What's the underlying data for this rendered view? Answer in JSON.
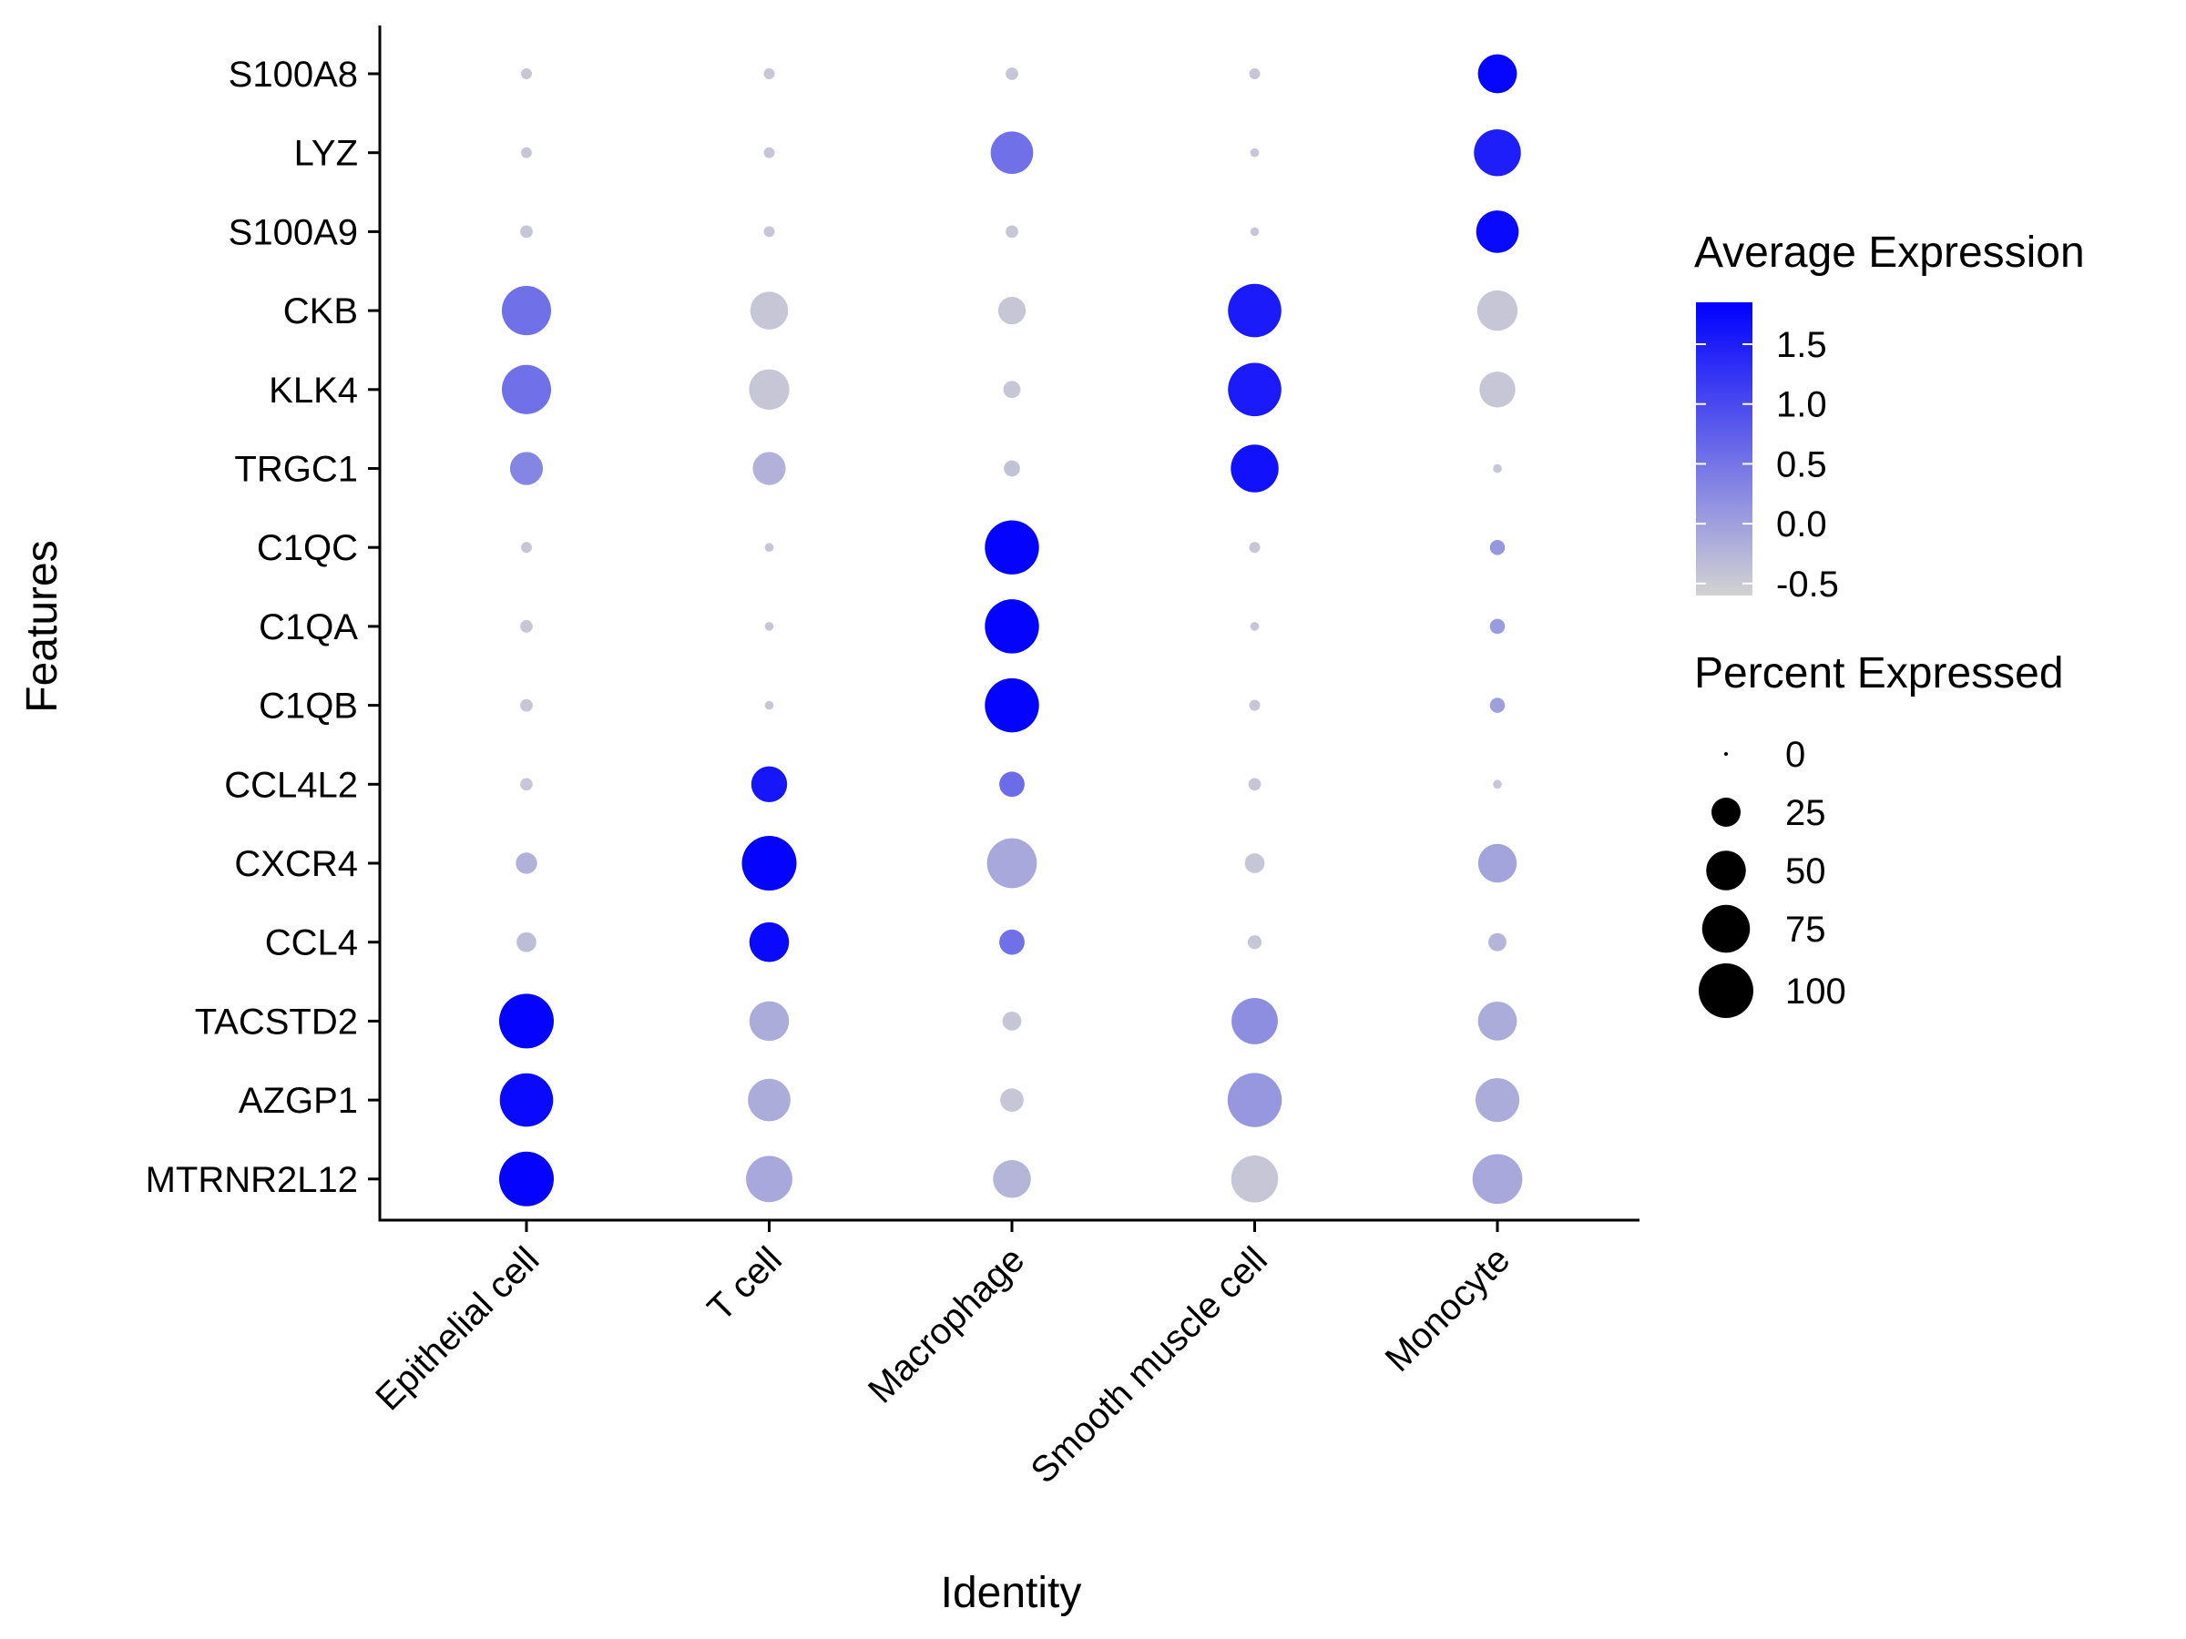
{
  "chart_data": {
    "type": "dotplot",
    "xlabel": "Identity",
    "ylabel": "Features",
    "categories": [
      "Epithelial cell",
      "T cell",
      "Macrophage",
      "Smooth muscle cell",
      "Monocyte"
    ],
    "features": [
      "S100A8",
      "LYZ",
      "S100A9",
      "CKB",
      "KLK4",
      "TRGC1",
      "C1QC",
      "C1QA",
      "C1QB",
      "CCL4L2",
      "CXCR4",
      "CCL4",
      "TACSTD2",
      "AZGP1",
      "MTRNR2L12"
    ],
    "points": [
      {
        "feature": "S100A8",
        "values": [
          {
            "avg": -0.45,
            "pct": 2
          },
          {
            "avg": -0.45,
            "pct": 2
          },
          {
            "avg": -0.45,
            "pct": 3
          },
          {
            "avg": -0.45,
            "pct": 2
          },
          {
            "avg": 1.78,
            "pct": 48
          }
        ]
      },
      {
        "feature": "LYZ",
        "values": [
          {
            "avg": -0.45,
            "pct": 2
          },
          {
            "avg": -0.45,
            "pct": 2
          },
          {
            "avg": 0.55,
            "pct": 58
          },
          {
            "avg": -0.45,
            "pct": 1
          },
          {
            "avg": 1.5,
            "pct": 72
          }
        ]
      },
      {
        "feature": "S100A9",
        "values": [
          {
            "avg": -0.45,
            "pct": 3
          },
          {
            "avg": -0.45,
            "pct": 2
          },
          {
            "avg": -0.45,
            "pct": 3
          },
          {
            "avg": -0.45,
            "pct": 1
          },
          {
            "avg": 1.75,
            "pct": 58
          }
        ]
      },
      {
        "feature": "CKB",
        "values": [
          {
            "avg": 0.55,
            "pct": 80
          },
          {
            "avg": -0.45,
            "pct": 45
          },
          {
            "avg": -0.45,
            "pct": 22
          },
          {
            "avg": 1.55,
            "pct": 95
          },
          {
            "avg": -0.45,
            "pct": 52
          }
        ]
      },
      {
        "feature": "KLK4",
        "values": [
          {
            "avg": 0.55,
            "pct": 80
          },
          {
            "avg": -0.45,
            "pct": 52
          },
          {
            "avg": -0.45,
            "pct": 7
          },
          {
            "avg": 1.55,
            "pct": 95
          },
          {
            "avg": -0.45,
            "pct": 40
          }
        ]
      },
      {
        "feature": "TRGC1",
        "values": [
          {
            "avg": 0.3,
            "pct": 33
          },
          {
            "avg": -0.2,
            "pct": 33
          },
          {
            "avg": -0.4,
            "pct": 6
          },
          {
            "avg": 1.65,
            "pct": 75
          },
          {
            "avg": -0.45,
            "pct": 1
          }
        ]
      },
      {
        "feature": "C1QC",
        "values": [
          {
            "avg": -0.45,
            "pct": 2
          },
          {
            "avg": -0.45,
            "pct": 1
          },
          {
            "avg": 1.8,
            "pct": 98
          },
          {
            "avg": -0.45,
            "pct": 2
          },
          {
            "avg": 0.1,
            "pct": 5
          }
        ]
      },
      {
        "feature": "C1QA",
        "values": [
          {
            "avg": -0.45,
            "pct": 3
          },
          {
            "avg": -0.45,
            "pct": 1
          },
          {
            "avg": 1.8,
            "pct": 98
          },
          {
            "avg": -0.45,
            "pct": 1
          },
          {
            "avg": 0.05,
            "pct": 5
          }
        ]
      },
      {
        "feature": "C1QB",
        "values": [
          {
            "avg": -0.45,
            "pct": 3
          },
          {
            "avg": -0.45,
            "pct": 1
          },
          {
            "avg": 1.8,
            "pct": 98
          },
          {
            "avg": -0.45,
            "pct": 2
          },
          {
            "avg": 0.0,
            "pct": 5
          }
        ]
      },
      {
        "feature": "CCL4L2",
        "values": [
          {
            "avg": -0.45,
            "pct": 3
          },
          {
            "avg": 1.6,
            "pct": 40
          },
          {
            "avg": 0.6,
            "pct": 18
          },
          {
            "avg": -0.45,
            "pct": 3
          },
          {
            "avg": -0.45,
            "pct": 1
          }
        ]
      },
      {
        "feature": "CXCR4",
        "values": [
          {
            "avg": -0.2,
            "pct": 12
          },
          {
            "avg": 1.8,
            "pct": 100
          },
          {
            "avg": -0.1,
            "pct": 82
          },
          {
            "avg": -0.45,
            "pct": 10
          },
          {
            "avg": -0.05,
            "pct": 47
          }
        ]
      },
      {
        "feature": "CCL4",
        "values": [
          {
            "avg": -0.35,
            "pct": 10
          },
          {
            "avg": 1.75,
            "pct": 50
          },
          {
            "avg": 0.55,
            "pct": 18
          },
          {
            "avg": -0.45,
            "pct": 4
          },
          {
            "avg": -0.25,
            "pct": 8
          }
        ]
      },
      {
        "feature": "TACSTD2",
        "values": [
          {
            "avg": 1.8,
            "pct": 100
          },
          {
            "avg": -0.15,
            "pct": 50
          },
          {
            "avg": -0.45,
            "pct": 9
          },
          {
            "avg": 0.2,
            "pct": 70
          },
          {
            "avg": -0.15,
            "pct": 48
          }
        ]
      },
      {
        "feature": "AZGP1",
        "values": [
          {
            "avg": 1.75,
            "pct": 95
          },
          {
            "avg": -0.15,
            "pct": 58
          },
          {
            "avg": -0.45,
            "pct": 15
          },
          {
            "avg": 0.1,
            "pct": 98
          },
          {
            "avg": -0.15,
            "pct": 62
          }
        ]
      },
      {
        "feature": "MTRNR2L12",
        "values": [
          {
            "avg": 1.8,
            "pct": 100
          },
          {
            "avg": -0.1,
            "pct": 70
          },
          {
            "avg": -0.25,
            "pct": 45
          },
          {
            "avg": -0.45,
            "pct": 72
          },
          {
            "avg": -0.1,
            "pct": 82
          }
        ]
      }
    ],
    "color_legend": {
      "title": "Average Expression",
      "ticks": [
        "1.5",
        "1.0",
        "0.5",
        "0.0",
        "-0.5"
      ],
      "tick_values": [
        1.5,
        1.0,
        0.5,
        0.0,
        -0.5
      ],
      "range": [
        -0.6,
        1.85
      ],
      "low_color": "#D3D3D3",
      "high_color": "#0000FF"
    },
    "size_legend": {
      "title": "Percent Expressed",
      "labels": [
        "0",
        "25",
        "50",
        "75",
        "100"
      ],
      "values": [
        0,
        25,
        50,
        75,
        100
      ]
    }
  }
}
